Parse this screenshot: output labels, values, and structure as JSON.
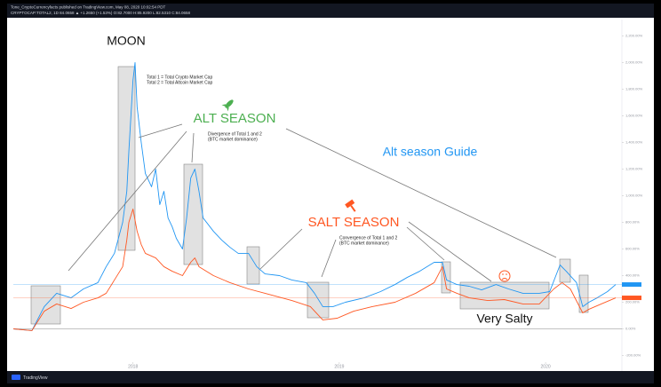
{
  "chart_data": {
    "type": "line",
    "title": "Tone_CryptoCurrencyfacts published on TradingView.com, May 08, 2020 10:02:54 PDT",
    "subtitle": "CRYPTOCAP:TOTAL2, 1D 84.0658 ▲ +1.2650 (+1.53%) O:82.7000 H:85.9200 L:82.5310 C:84.0658",
    "footer": "TradingView",
    "annotations": [
      "MOON",
      "Total 1 = Total Crypto Market Cap",
      "Total 2 = Total Altcoin Market Cap",
      "ALT SEASON",
      "Divergence of Total 1 and 2",
      "(BTC market dominance)",
      "Alt season Guide",
      "SALT SEASON",
      "Convergence of Total 1 and 2",
      "(BTC market dominance)",
      "Very Salty"
    ],
    "xlim": [
      2017.42,
      2020.37
    ],
    "xticks": [
      2018,
      2019,
      2020
    ],
    "ylim": [
      -250,
      2270
    ],
    "yticks": [
      {
        "value": -200,
        "label": "-200.00%"
      },
      {
        "value": 0,
        "label": "0.00%"
      },
      {
        "value": 200,
        "label": "200.00%"
      },
      {
        "value": 400,
        "label": "400.00%"
      },
      {
        "value": 600,
        "label": "600.00%"
      },
      {
        "value": 800,
        "label": "800.00%"
      },
      {
        "value": 1000,
        "label": "1,000.00%"
      },
      {
        "value": 1200,
        "label": "1,200.00%"
      },
      {
        "value": 1400,
        "label": "1,400.00%"
      },
      {
        "value": 1600,
        "label": "1,600.00%"
      },
      {
        "value": 1800,
        "label": "1,800.00%"
      },
      {
        "value": 2000,
        "label": "2,000.00%"
      },
      {
        "value": 2200,
        "label": "2,200.00%"
      }
    ],
    "series": [
      {
        "color": "#2196f3",
        "x": [
          2017.42,
          2017.51,
          2017.57,
          2017.63,
          2017.7,
          2017.76,
          2017.83,
          2017.87,
          2017.91,
          2017.95,
          2017.97,
          2017.98,
          2018.0,
          2018.01,
          2018.02,
          2018.04,
          2018.06,
          2018.09,
          2018.11,
          2018.13,
          2018.15,
          2018.17,
          2018.19,
          2018.21,
          2018.24,
          2018.26,
          2018.28,
          2018.3,
          2018.32,
          2018.34,
          2018.39,
          2018.43,
          2018.47,
          2018.51,
          2018.56,
          2018.6,
          2018.64,
          2018.71,
          2018.77,
          2018.84,
          2018.88,
          2018.92,
          2018.97,
          2019.03,
          2019.12,
          2019.2,
          2019.27,
          2019.33,
          2019.39,
          2019.46,
          2019.5,
          2019.52,
          2019.57,
          2019.63,
          2019.69,
          2019.76,
          2019.82,
          2019.89,
          2019.97,
          2020.02,
          2020.07,
          2020.1,
          2020.15,
          2020.18,
          2020.21,
          2020.25,
          2020.3,
          2020.34
        ],
        "values": [
          0,
          -13,
          167,
          267,
          233,
          300,
          347,
          467,
          567,
          800,
          1033,
          1333,
          1867,
          2000,
          1667,
          1400,
          1167,
          1067,
          1200,
          933,
          1033,
          833,
          767,
          680,
          600,
          833,
          1133,
          1200,
          1033,
          833,
          733,
          667,
          613,
          567,
          567,
          467,
          413,
          400,
          367,
          347,
          267,
          167,
          167,
          200,
          233,
          280,
          333,
          387,
          433,
          500,
          500,
          367,
          333,
          320,
          293,
          333,
          300,
          267,
          267,
          280,
          480,
          433,
          347,
          167,
          200,
          233,
          280,
          333
        ]
      },
      {
        "color": "#ff5722",
        "x": [
          2017.42,
          2017.51,
          2017.57,
          2017.63,
          2017.7,
          2017.76,
          2017.83,
          2017.87,
          2017.91,
          2017.95,
          2017.97,
          2017.98,
          2018.0,
          2018.02,
          2018.04,
          2018.06,
          2018.11,
          2018.15,
          2018.19,
          2018.24,
          2018.28,
          2018.3,
          2018.32,
          2018.39,
          2018.47,
          2018.56,
          2018.64,
          2018.77,
          2018.86,
          2018.92,
          2018.99,
          2019.07,
          2019.16,
          2019.27,
          2019.37,
          2019.46,
          2019.5,
          2019.52,
          2019.57,
          2019.63,
          2019.72,
          2019.8,
          2019.89,
          2019.97,
          2020.04,
          2020.08,
          2020.12,
          2020.18,
          2020.21,
          2020.27,
          2020.34
        ],
        "values": [
          0,
          -13,
          133,
          187,
          153,
          200,
          233,
          267,
          367,
          467,
          667,
          800,
          900,
          733,
          633,
          567,
          533,
          467,
          433,
          400,
          500,
          533,
          467,
          400,
          347,
          300,
          267,
          213,
          167,
          67,
          80,
          133,
          167,
          200,
          267,
          347,
          467,
          300,
          267,
          233,
          213,
          220,
          187,
          187,
          300,
          347,
          300,
          120,
          147,
          187,
          233
        ]
      }
    ]
  }
}
